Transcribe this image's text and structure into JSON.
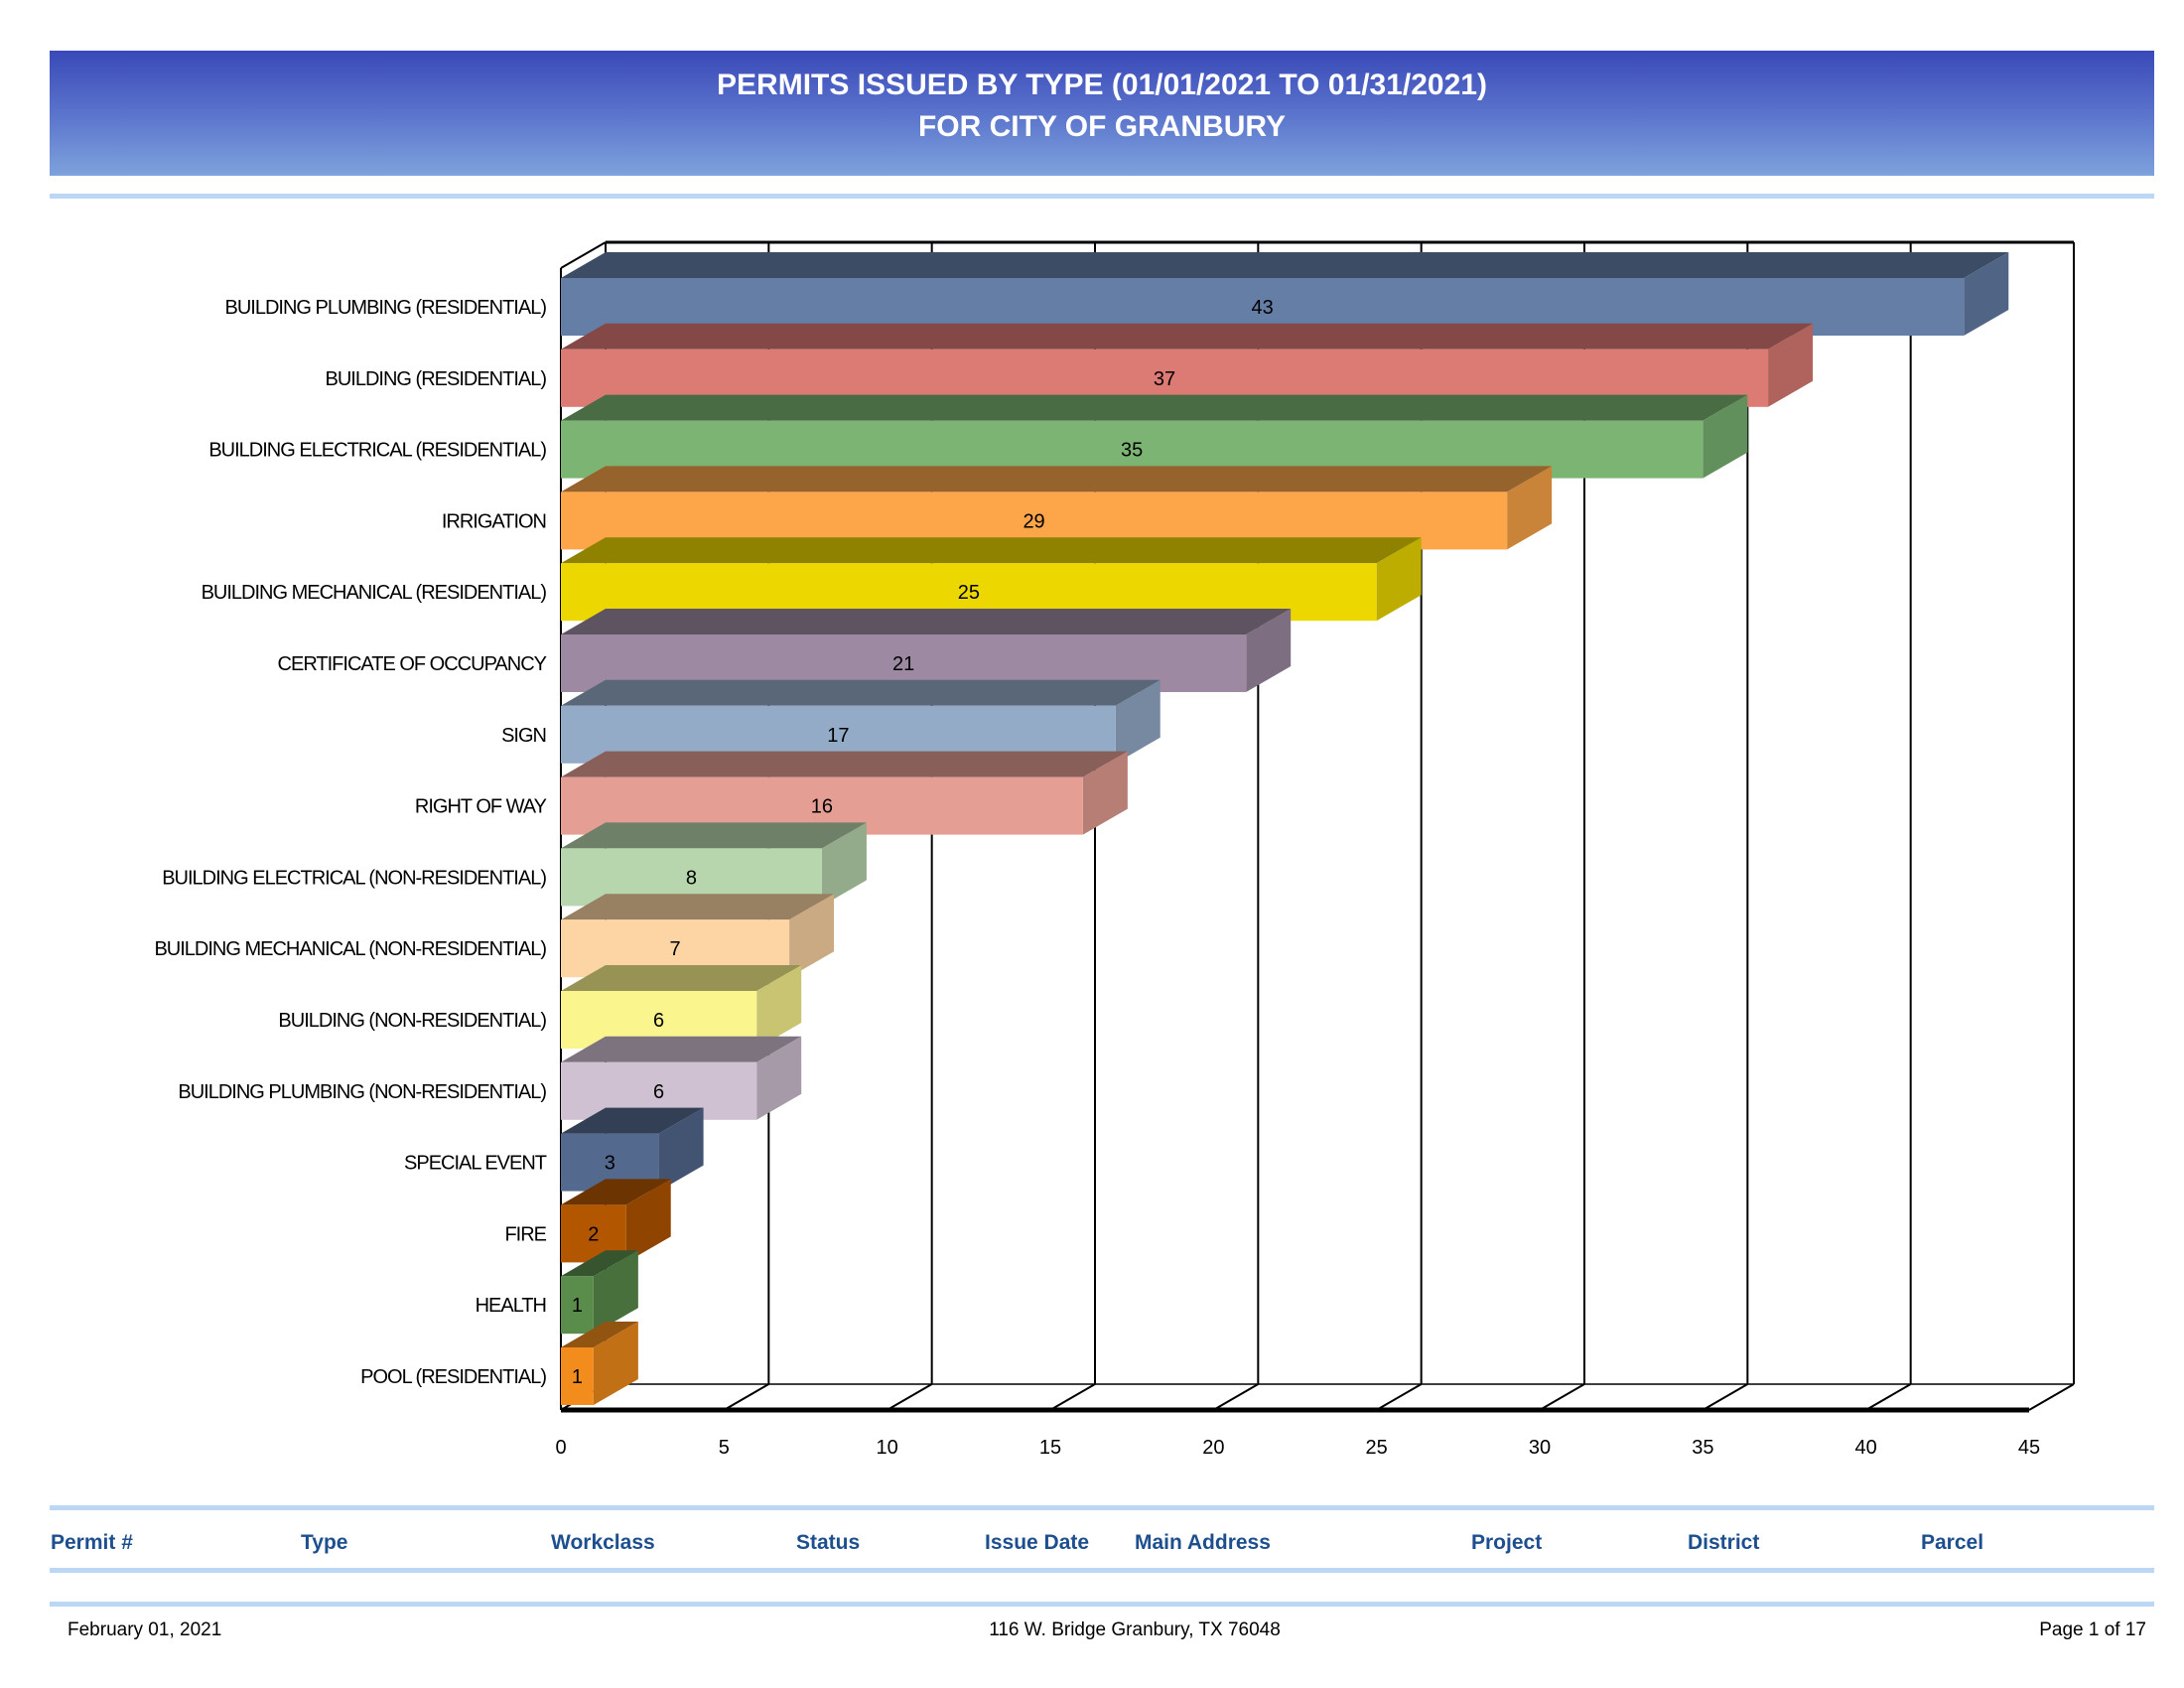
{
  "header": {
    "title": "PERMITS ISSUED BY TYPE (01/01/2021 TO 01/31/2021)",
    "subtitle": "FOR CITY OF GRANBURY"
  },
  "chart_data": {
    "type": "bar",
    "orientation": "horizontal",
    "style": "3d",
    "categories": [
      "BUILDING PLUMBING (RESIDENTIAL)",
      "BUILDING (RESIDENTIAL)",
      "BUILDING ELECTRICAL (RESIDENTIAL)",
      "IRRIGATION",
      "BUILDING MECHANICAL (RESIDENTIAL)",
      "CERTIFICATE OF OCCUPANCY",
      "SIGN",
      "RIGHT OF WAY",
      "BUILDING ELECTRICAL (NON-RESIDENTIAL)",
      "BUILDING MECHANICAL (NON-RESIDENTIAL)",
      "BUILDING (NON-RESIDENTIAL)",
      "BUILDING PLUMBING (NON-RESIDENTIAL)",
      "SPECIAL EVENT",
      "FIRE",
      "HEALTH",
      "POOL (RESIDENTIAL)"
    ],
    "values": [
      43,
      37,
      35,
      29,
      25,
      21,
      17,
      16,
      8,
      7,
      6,
      6,
      3,
      2,
      1,
      1
    ],
    "colors": [
      "#647ea6",
      "#dc7a74",
      "#7bb473",
      "#fca549",
      "#ecd800",
      "#9d8aa2",
      "#94abc8",
      "#e59e94",
      "#b8d6ad",
      "#fdd5a4",
      "#fbf58e",
      "#cfc0d2",
      "#53698d",
      "#b35600",
      "#5a8c4c",
      "#f28c1c"
    ],
    "xlim": [
      0,
      45
    ],
    "xticks": [
      "0",
      "5",
      "10",
      "15",
      "20",
      "25",
      "30",
      "35",
      "40",
      "45"
    ],
    "grid": true,
    "data_labels": true
  },
  "table": {
    "columns": [
      "Permit #",
      "Type",
      "Workclass",
      "Status",
      "Issue Date",
      "Main Address",
      "Project",
      "District",
      "Parcel"
    ]
  },
  "footer": {
    "date": "February 01, 2021",
    "address": "116 W. Bridge Granbury, TX 76048",
    "page": "Page 1 of 17"
  }
}
